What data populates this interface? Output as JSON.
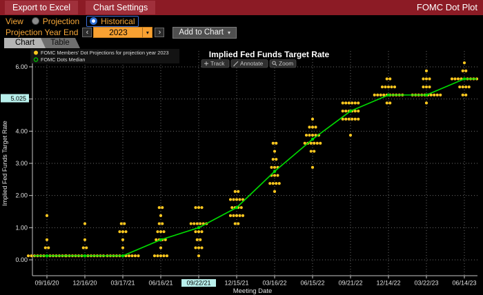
{
  "topbar": {
    "export_label": "Export to Excel",
    "settings_label": "Chart Settings",
    "app_title": "FOMC Dot Plot"
  },
  "controls": {
    "view_label": "View",
    "radio_projection": "Projection",
    "radio_historical": "Historical",
    "selected_view": "Historical",
    "projection_year_label": "Projection Year End",
    "year_value": "2023",
    "prev_icon": "‹",
    "next_icon": "›",
    "caret_icon": "▾",
    "add_to_chart_label": "Add to Chart"
  },
  "tabs": {
    "chart": "Chart",
    "table": "Table",
    "active": "Chart"
  },
  "chart_data": {
    "type": "scatter",
    "title": "Implied Fed Funds Target Rate",
    "xlabel": "Meeting Date",
    "ylabel": "Implied Fed Funds Target Rate",
    "toolbar_buttons": [
      "Track",
      "Annotate",
      "Zoom"
    ],
    "legend": [
      {
        "label": "FOMC Members' Dot Projections for projection year 2023",
        "color": "#ffc81e",
        "marker": "filled"
      },
      {
        "label": "FOMC Dots Median",
        "color": "#00d800",
        "marker": "open"
      }
    ],
    "ylim": [
      -0.5,
      6.5
    ],
    "grid_values": [
      0,
      1,
      2,
      3,
      4,
      5,
      6
    ],
    "y_ticks": [
      {
        "value": 0,
        "label": "0.00"
      },
      {
        "value": 1,
        "label": "1.00"
      },
      {
        "value": 2,
        "label": "2.00"
      },
      {
        "value": 3,
        "label": "3.00"
      },
      {
        "value": 4,
        "label": "4.00"
      },
      {
        "value": 6,
        "label": "6.00"
      }
    ],
    "tracked_value": {
      "value": 5.025,
      "label": "5.025"
    },
    "highlighted_date": "09/22/21",
    "meetings": [
      {
        "date": "09/16/20",
        "median": 0.125,
        "dots": [
          [
            0.125,
            13
          ],
          [
            0.375,
            2
          ],
          [
            0.625,
            1
          ],
          [
            1.375,
            1
          ]
        ]
      },
      {
        "date": "12/16/20",
        "median": 0.125,
        "dots": [
          [
            0.125,
            13
          ],
          [
            0.375,
            2
          ],
          [
            0.625,
            1
          ],
          [
            1.125,
            1
          ]
        ]
      },
      {
        "date": "03/17/21",
        "median": 0.125,
        "dots": [
          [
            0.125,
            11
          ],
          [
            0.375,
            1
          ],
          [
            0.625,
            1
          ],
          [
            0.875,
            3
          ],
          [
            1.125,
            2
          ]
        ]
      },
      {
        "date": "06/16/21",
        "median": 0.625,
        "dots": [
          [
            0.125,
            5
          ],
          [
            0.375,
            1
          ],
          [
            0.625,
            4
          ],
          [
            0.875,
            3
          ],
          [
            1.125,
            2
          ],
          [
            1.375,
            1
          ],
          [
            1.625,
            2
          ]
        ]
      },
      {
        "date": "09/22/21",
        "median": 1.0,
        "dots": [
          [
            0.125,
            1
          ],
          [
            0.375,
            3
          ],
          [
            0.625,
            2
          ],
          [
            0.875,
            3
          ],
          [
            1.125,
            6
          ],
          [
            1.625,
            3
          ]
        ]
      },
      {
        "date": "12/15/21",
        "median": 1.625,
        "dots": [
          [
            1.125,
            2
          ],
          [
            1.375,
            5
          ],
          [
            1.625,
            4
          ],
          [
            1.875,
            5
          ],
          [
            2.125,
            2
          ]
        ]
      },
      {
        "date": "03/16/22",
        "median": 2.75,
        "dots": [
          [
            2.125,
            1
          ],
          [
            2.375,
            4
          ],
          [
            2.625,
            3
          ],
          [
            2.875,
            3
          ],
          [
            3.125,
            2
          ],
          [
            3.375,
            1
          ],
          [
            3.625,
            2
          ]
        ]
      },
      {
        "date": "06/15/22",
        "median": 3.75,
        "dots": [
          [
            2.875,
            1
          ],
          [
            3.375,
            2
          ],
          [
            3.625,
            6
          ],
          [
            3.875,
            5
          ],
          [
            4.125,
            3
          ],
          [
            4.375,
            1
          ]
        ]
      },
      {
        "date": "09/21/22",
        "median": 4.625,
        "dots": [
          [
            3.875,
            1
          ],
          [
            4.375,
            6
          ],
          [
            4.625,
            6
          ],
          [
            4.875,
            6
          ]
        ]
      },
      {
        "date": "12/14/22",
        "median": 5.125,
        "dots": [
          [
            4.875,
            2
          ],
          [
            5.125,
            10
          ],
          [
            5.375,
            5
          ],
          [
            5.625,
            2
          ]
        ]
      },
      {
        "date": "03/22/23",
        "median": 5.125,
        "dots": [
          [
            4.875,
            1
          ],
          [
            5.125,
            10
          ],
          [
            5.375,
            3
          ],
          [
            5.625,
            3
          ],
          [
            5.875,
            1
          ]
        ]
      },
      {
        "date": "06/14/23",
        "median": 5.625,
        "dots": [
          [
            5.125,
            2
          ],
          [
            5.375,
            4
          ],
          [
            5.625,
            9
          ],
          [
            5.875,
            2
          ],
          [
            6.125,
            1
          ]
        ]
      }
    ],
    "colors": {
      "dots": "#ffc81e",
      "median": "#00d800",
      "highlight_bg": "#b9f0ec",
      "grid": "#6e6e6e",
      "axis": "#c8c8c8",
      "text": "#e2e2e2"
    }
  },
  "colors": {
    "bar_red": "#8c1b25",
    "amber": "#f8a838",
    "field_orange": "#f8a132",
    "cyan": "#b9f0ec"
  }
}
